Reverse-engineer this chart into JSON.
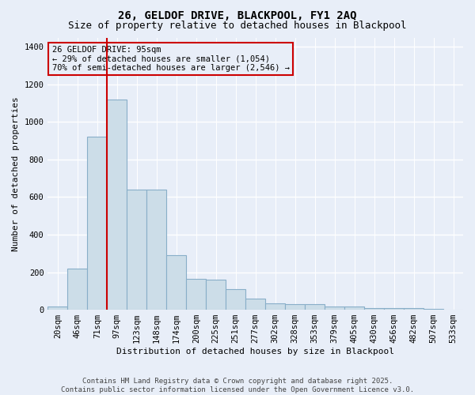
{
  "title_line1": "26, GELDOF DRIVE, BLACKPOOL, FY1 2AQ",
  "title_line2": "Size of property relative to detached houses in Blackpool",
  "xlabel": "Distribution of detached houses by size in Blackpool",
  "ylabel": "Number of detached properties",
  "annotation_title": "26 GELDOF DRIVE: 95sqm",
  "annotation_line1": "← 29% of detached houses are smaller (1,054)",
  "annotation_line2": "70% of semi-detached houses are larger (2,546) →",
  "footer_line1": "Contains HM Land Registry data © Crown copyright and database right 2025.",
  "footer_line2": "Contains public sector information licensed under the Open Government Licence v3.0.",
  "bar_labels": [
    "20sqm",
    "46sqm",
    "71sqm",
    "97sqm",
    "123sqm",
    "148sqm",
    "174sqm",
    "200sqm",
    "225sqm",
    "251sqm",
    "277sqm",
    "302sqm",
    "328sqm",
    "353sqm",
    "379sqm",
    "405sqm",
    "430sqm",
    "456sqm",
    "482sqm",
    "507sqm",
    "533sqm"
  ],
  "bar_values": [
    18,
    220,
    920,
    1120,
    640,
    640,
    290,
    165,
    160,
    110,
    60,
    35,
    28,
    28,
    18,
    18,
    10,
    10,
    10,
    5,
    2
  ],
  "bar_color": "#ccdde8",
  "bar_edge_color": "#88aec8",
  "vline_color": "#cc0000",
  "annotation_box_color": "#cc0000",
  "background_color": "#e8eef8",
  "ylim": [
    0,
    1450
  ],
  "yticks": [
    0,
    200,
    400,
    600,
    800,
    1000,
    1200,
    1400
  ],
  "grid_color": "#ffffff",
  "title_fontsize": 10,
  "subtitle_fontsize": 9,
  "axis_label_fontsize": 8,
  "tick_fontsize": 7.5,
  "annotation_fontsize": 7.5,
  "footer_fontsize": 6.5,
  "vline_x_index": 3
}
